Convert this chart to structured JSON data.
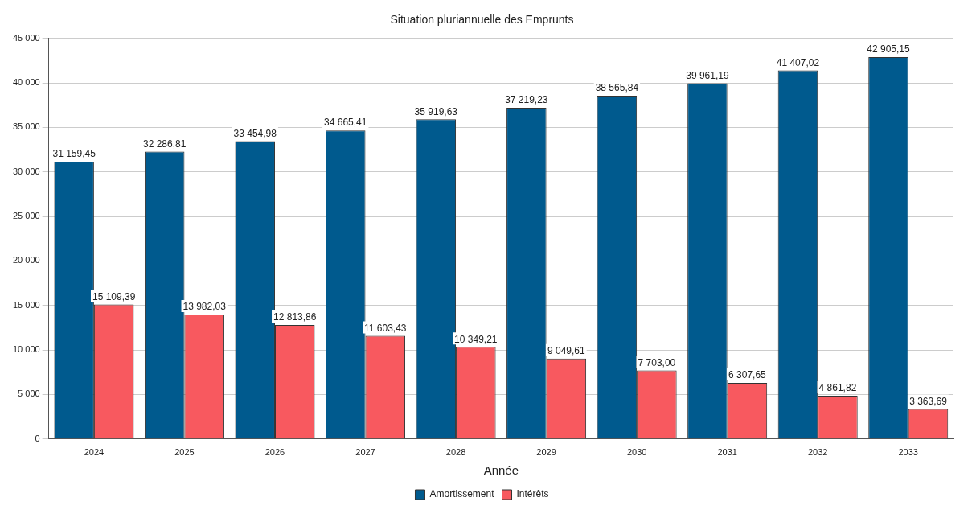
{
  "chart_data": {
    "type": "bar",
    "title": "Situation pluriannuelle des Emprunts",
    "xlabel": "Année",
    "categories": [
      "2024",
      "2025",
      "2026",
      "2027",
      "2028",
      "2029",
      "2030",
      "2031",
      "2032",
      "2033"
    ],
    "series": [
      {
        "name": "Amortissement",
        "color": "#005a8e",
        "values": [
          31159.45,
          32286.81,
          33454.98,
          34665.41,
          35919.63,
          37219.23,
          38565.84,
          39961.19,
          41407.02,
          42905.15
        ],
        "value_labels": [
          "31 159,45",
          "32 286,81",
          "33 454,98",
          "34 665,41",
          "35 919,63",
          "37 219,23",
          "38 565,84",
          "39 961,19",
          "41 407,02",
          "42 905,15"
        ]
      },
      {
        "name": "Intérêts",
        "color": "#f8595f",
        "values": [
          15109.39,
          13982.03,
          12813.86,
          11603.43,
          10349.21,
          9049.61,
          7703.0,
          6307.65,
          4861.82,
          3363.69
        ],
        "value_labels": [
          "15 109,39",
          "13 982,03",
          "12 813,86",
          "11 603,43",
          "10 349,21",
          "9 049,61",
          "7 703,00",
          "6 307,65",
          "4 861,82",
          "3 363,69"
        ]
      }
    ],
    "ylim": [
      0,
      45000
    ],
    "yticks": [
      {
        "value": 0,
        "label": "0"
      },
      {
        "value": 5000,
        "label": "5 000"
      },
      {
        "value": 10000,
        "label": "10 000"
      },
      {
        "value": 15000,
        "label": "15 000"
      },
      {
        "value": 20000,
        "label": "20 000"
      },
      {
        "value": 25000,
        "label": "25 000"
      },
      {
        "value": 30000,
        "label": "30 000"
      },
      {
        "value": 35000,
        "label": "35 000"
      },
      {
        "value": 40000,
        "label": "40 000"
      },
      {
        "value": 45000,
        "label": "45 000"
      }
    ],
    "grid": "y",
    "legend": "bottom"
  }
}
